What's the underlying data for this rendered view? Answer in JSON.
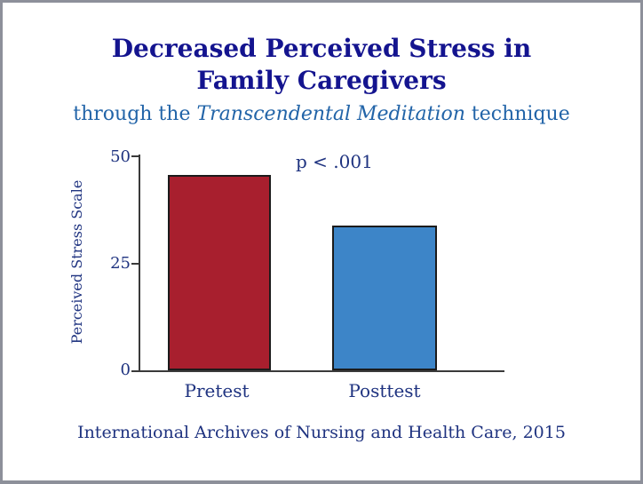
{
  "window": {
    "background": "#ffffff",
    "frame_color": "#8d909a"
  },
  "header": {
    "title_line1": "Decreased Perceived Stress in",
    "title_line2": "Family Caregivers",
    "subtitle_prefix": "through the ",
    "subtitle_italic": "Transcendental Meditation",
    "subtitle_suffix": " technique",
    "title_color": "#14148f",
    "subtitle_color": "#2264a8"
  },
  "chart_data": {
    "type": "bar",
    "title": "Decreased Perceived Stress in Family Caregivers",
    "subtitle": "through the Transcendental Meditation technique",
    "categories": [
      "Pretest",
      "Posttest"
    ],
    "values": [
      45,
      33.5
    ],
    "bar_colors": [
      "#a81f2e",
      "#3d85c8"
    ],
    "bar_border_color": "#1b1b1b",
    "xlabel": "",
    "ylabel": "Perceived Stress Scale",
    "yticks": [
      "50",
      "25",
      "0"
    ],
    "ylim": [
      0,
      50
    ],
    "annotation": "p < .001",
    "grid": false,
    "legend": false,
    "axis_color": "#3a3a3a",
    "text_color": "#1f3380"
  },
  "footer": {
    "source": "International Archives of Nursing and Health Care, 2015"
  }
}
